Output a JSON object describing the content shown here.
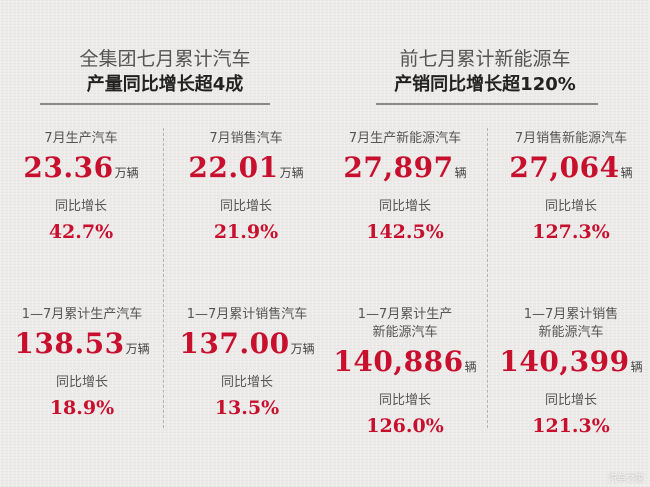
{
  "headers": {
    "left": {
      "line1": "全集团七月累计汽车",
      "line2": "产量同比增长超4成"
    },
    "right": {
      "line1": "前七月累计新能源车",
      "line2": "产销同比增长超120%"
    }
  },
  "cards": [
    {
      "label": "7月生产汽车",
      "value": "23.36",
      "unit": "万辆",
      "growth_label": "同比增长",
      "growth": "42.7%"
    },
    {
      "label": "7月销售汽车",
      "value": "22.01",
      "unit": "万辆",
      "growth_label": "同比增长",
      "growth": "21.9%"
    },
    {
      "label": "7月生产新能源汽车",
      "value": "27,897",
      "unit": "辆",
      "growth_label": "同比增长",
      "growth": "142.5%"
    },
    {
      "label": "7月销售新能源汽车",
      "value": "27,064",
      "unit": "辆",
      "growth_label": "同比增长",
      "growth": "127.3%"
    },
    {
      "label": "1—7月累计生产汽车",
      "value": "138.53",
      "unit": "万辆",
      "growth_label": "同比增长",
      "growth": "18.9%"
    },
    {
      "label": "1—7月累计销售汽车",
      "value": "137.00",
      "unit": "万辆",
      "growth_label": "同比增长",
      "growth": "13.5%"
    },
    {
      "label": "1—7月累计生产",
      "label2": "新能源汽车",
      "value": "140,886",
      "unit": "辆",
      "growth_label": "同比增长",
      "growth": "126.0%"
    },
    {
      "label": "1—7月累计销售",
      "label2": "新能源汽车",
      "value": "140,399",
      "unit": "辆",
      "growth_label": "同比增长",
      "growth": "121.3%"
    }
  ],
  "watermark": "汽车之家",
  "colors": {
    "accent": "#c8102e",
    "background": "#ecebe9"
  }
}
